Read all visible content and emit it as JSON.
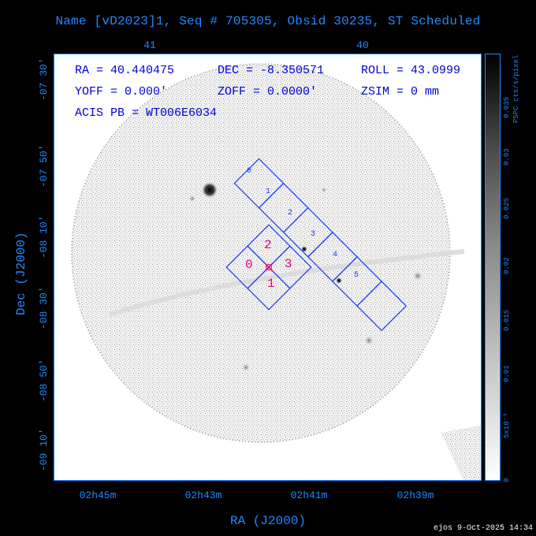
{
  "title": "Name [vD2023]1, Seq # 705305, Obsid 30235, ST Scheduled",
  "axes": {
    "x_title": "RA (J2000)",
    "y_title": "Dec (J2000)",
    "top_ticks": [
      "41",
      "40"
    ],
    "bottom_ticks": [
      "02h45m",
      "02h43m",
      "02h41m",
      "02h39m"
    ],
    "left_ticks": [
      "-07 30'",
      "-07 50'",
      "-08 10'",
      "-08 30'",
      "-08 50'",
      "-09 10'"
    ]
  },
  "info": {
    "ra": "RA = 40.440475",
    "dec": "DEC = -8.350571",
    "roll": "ROLL = 43.0999",
    "yoff": "YOFF =   0.000'",
    "zoff": "ZOFF =  0.0000'",
    "zsim": "ZSIM = 0 mm",
    "acis": "ACIS PB = WT006E6034"
  },
  "chips_blue": [
    "0",
    "1",
    "2",
    "3",
    "4",
    "5"
  ],
  "chips_pink": [
    "0",
    "1",
    "2",
    "3"
  ],
  "colorbar": {
    "unit": "PSPC cts/s/pixel",
    "ticks": [
      "0",
      "5x10⁻³",
      "0.01",
      "0.015",
      "0.02",
      "0.025",
      "0.03",
      "0.035"
    ]
  },
  "footer": "ejos  9-Oct-2025 14:34",
  "colors": {
    "axis": "#1f8bff",
    "chip_outline": "#1a3cff",
    "chip_label_pink": "#e0007a",
    "info_text": "#0000d8"
  }
}
